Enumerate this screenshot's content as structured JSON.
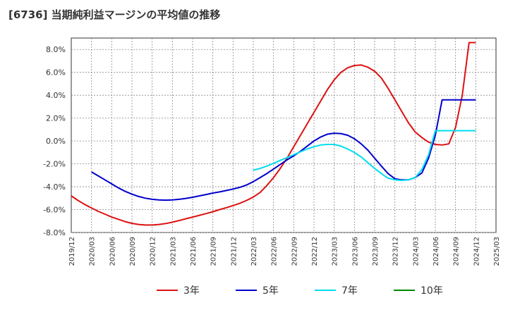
{
  "chart_data": {
    "type": "line",
    "title": "[6736]  当期純利益マージンの平均値の推移",
    "xlabel": "",
    "ylabel": "",
    "ylim": [
      -8.0,
      9.0
    ],
    "yticks": [
      "-8.0%",
      "-6.0%",
      "-4.0%",
      "-2.0%",
      "0.0%",
      "2.0%",
      "4.0%",
      "6.0%",
      "8.0%"
    ],
    "ytick_values": [
      -8,
      -6,
      -4,
      -2,
      0,
      2,
      4,
      6,
      8
    ],
    "xticks": [
      "2019/12",
      "2020/03",
      "2020/06",
      "2020/09",
      "2020/12",
      "2021/03",
      "2021/06",
      "2021/09",
      "2021/12",
      "2022/03",
      "2022/06",
      "2022/09",
      "2022/12",
      "2023/03",
      "2023/06",
      "2023/09",
      "2023/12",
      "2024/03",
      "2024/06",
      "2024/09",
      "2024/12",
      "2025/03"
    ],
    "grid": true,
    "legend_position": "bottom",
    "series": [
      {
        "name": "3年",
        "color": "#dd1111",
        "x": [
          "2019/12",
          "2020/01",
          "2020/02",
          "2020/03",
          "2020/04",
          "2020/05",
          "2020/06",
          "2020/07",
          "2020/08",
          "2020/09",
          "2020/10",
          "2020/11",
          "2020/12",
          "2021/01",
          "2021/02",
          "2021/03",
          "2021/04",
          "2021/05",
          "2021/06",
          "2021/07",
          "2021/08",
          "2021/09",
          "2021/10",
          "2021/11",
          "2021/12",
          "2022/01",
          "2022/02",
          "2022/03",
          "2022/04",
          "2022/05",
          "2022/06",
          "2022/07",
          "2022/08",
          "2022/09",
          "2022/10",
          "2022/11",
          "2022/12",
          "2023/01",
          "2023/02",
          "2023/03",
          "2023/04",
          "2023/05",
          "2023/06",
          "2023/07",
          "2023/08",
          "2023/09",
          "2023/10",
          "2023/11",
          "2023/12",
          "2024/01",
          "2024/02",
          "2024/03",
          "2024/04",
          "2024/05",
          "2024/06",
          "2024/07",
          "2024/08",
          "2024/09",
          "2024/10",
          "2024/11",
          "2024/12"
        ],
        "y": [
          -4.8,
          -5.2,
          -5.55,
          -5.85,
          -6.15,
          -6.4,
          -6.65,
          -6.85,
          -7.05,
          -7.2,
          -7.3,
          -7.35,
          -7.35,
          -7.3,
          -7.22,
          -7.1,
          -6.95,
          -6.8,
          -6.65,
          -6.5,
          -6.35,
          -6.18,
          -6.0,
          -5.83,
          -5.65,
          -5.45,
          -5.2,
          -4.9,
          -4.5,
          -3.9,
          -3.2,
          -2.4,
          -1.5,
          -0.5,
          0.5,
          1.5,
          2.5,
          3.5,
          4.5,
          5.35,
          6.0,
          6.4,
          6.6,
          6.65,
          6.45,
          6.1,
          5.5,
          4.6,
          3.6,
          2.6,
          1.6,
          0.8,
          0.3,
          -0.1,
          -0.3,
          -0.35,
          -0.25,
          1.2,
          4.0,
          8.6,
          8.6
        ]
      },
      {
        "name": "5年",
        "color": "#0000cc",
        "x": [
          "2020/03",
          "2020/04",
          "2020/05",
          "2020/06",
          "2020/07",
          "2020/08",
          "2020/09",
          "2020/10",
          "2020/11",
          "2020/12",
          "2021/01",
          "2021/02",
          "2021/03",
          "2021/04",
          "2021/05",
          "2021/06",
          "2021/07",
          "2021/08",
          "2021/09",
          "2021/10",
          "2021/11",
          "2021/12",
          "2022/01",
          "2022/02",
          "2022/03",
          "2022/04",
          "2022/05",
          "2022/06",
          "2022/07",
          "2022/08",
          "2022/09",
          "2022/10",
          "2022/11",
          "2022/12",
          "2023/01",
          "2023/02",
          "2023/03",
          "2023/04",
          "2023/05",
          "2023/06",
          "2023/07",
          "2023/08",
          "2023/09",
          "2023/10",
          "2023/11",
          "2023/12",
          "2024/01",
          "2024/02",
          "2024/03",
          "2024/04",
          "2024/05",
          "2024/06",
          "2024/07",
          "2024/08",
          "2024/09",
          "2024/10",
          "2024/11",
          "2024/12"
        ],
        "y": [
          -2.7,
          -3.05,
          -3.4,
          -3.75,
          -4.1,
          -4.4,
          -4.65,
          -4.85,
          -5.0,
          -5.1,
          -5.15,
          -5.17,
          -5.15,
          -5.1,
          -5.02,
          -4.92,
          -4.8,
          -4.68,
          -4.55,
          -4.45,
          -4.33,
          -4.2,
          -4.05,
          -3.85,
          -3.55,
          -3.2,
          -2.85,
          -2.45,
          -2.05,
          -1.65,
          -1.3,
          -0.9,
          -0.45,
          0.0,
          0.35,
          0.6,
          0.68,
          0.65,
          0.5,
          0.2,
          -0.25,
          -0.8,
          -1.5,
          -2.2,
          -2.85,
          -3.3,
          -3.4,
          -3.4,
          -3.2,
          -2.8,
          -1.5,
          0.5,
          3.6,
          3.6,
          3.6,
          3.6,
          3.6,
          3.6
        ]
      },
      {
        "name": "7年",
        "color": "#00ddee",
        "x": [
          "2022/03",
          "2022/04",
          "2022/05",
          "2022/06",
          "2022/07",
          "2022/08",
          "2022/09",
          "2022/10",
          "2022/11",
          "2022/12",
          "2023/01",
          "2023/02",
          "2023/03",
          "2023/04",
          "2023/05",
          "2023/06",
          "2023/07",
          "2023/08",
          "2023/09",
          "2023/10",
          "2023/11",
          "2023/12",
          "2024/01",
          "2024/02",
          "2024/03",
          "2024/04",
          "2024/05",
          "2024/06",
          "2024/07",
          "2024/08",
          "2024/09",
          "2024/10",
          "2024/11",
          "2024/12"
        ],
        "y": [
          -2.55,
          -2.4,
          -2.2,
          -1.95,
          -1.7,
          -1.45,
          -1.2,
          -0.95,
          -0.7,
          -0.5,
          -0.35,
          -0.3,
          -0.3,
          -0.45,
          -0.7,
          -1.0,
          -1.4,
          -1.9,
          -2.4,
          -2.85,
          -3.25,
          -3.4,
          -3.45,
          -3.4,
          -3.2,
          -2.5,
          -1.2,
          0.9,
          0.9,
          0.9,
          0.9,
          0.9,
          0.9,
          0.9
        ]
      },
      {
        "name": "10年",
        "color": "#008800",
        "x": [],
        "y": []
      }
    ]
  }
}
